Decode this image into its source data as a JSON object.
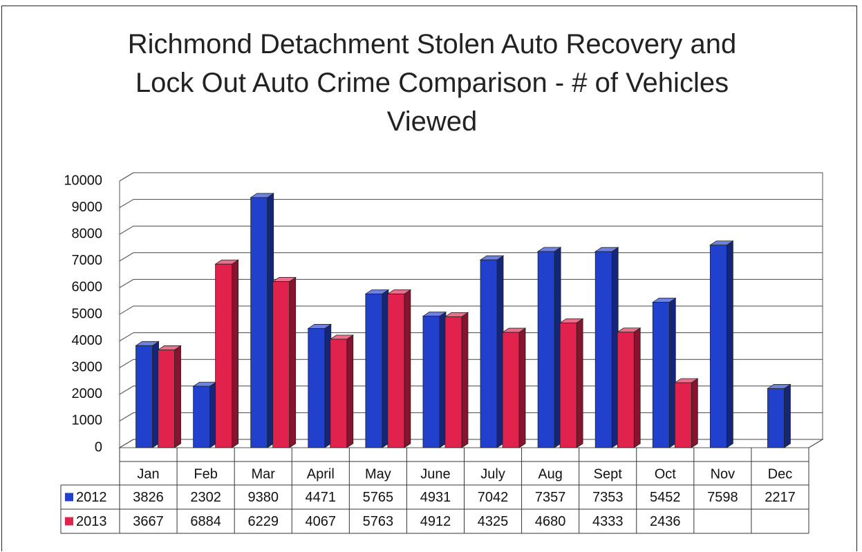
{
  "chart_data": {
    "type": "bar",
    "title": "Richmond Detachment Stolen Auto Recovery and Lock Out Auto Crime Comparison - # of Vehicles Viewed",
    "categories": [
      "Jan",
      "Feb",
      "Mar",
      "April",
      "May",
      "June",
      "July",
      "Aug",
      "Sept",
      "Oct",
      "Nov",
      "Dec"
    ],
    "series": [
      {
        "name": "2012",
        "color": "#2140cc",
        "values": [
          3826,
          2302,
          9380,
          4471,
          5765,
          4931,
          7042,
          7357,
          7353,
          5452,
          7598,
          2217
        ]
      },
      {
        "name": "2013",
        "color": "#e0224c",
        "values": [
          3667,
          6884,
          6229,
          4067,
          5763,
          4912,
          4325,
          4680,
          4333,
          2436,
          null,
          null
        ]
      }
    ],
    "ylim": [
      0,
      10000
    ],
    "yticks": [
      0,
      1000,
      2000,
      3000,
      4000,
      5000,
      6000,
      7000,
      8000,
      9000,
      10000
    ],
    "grid": true
  }
}
